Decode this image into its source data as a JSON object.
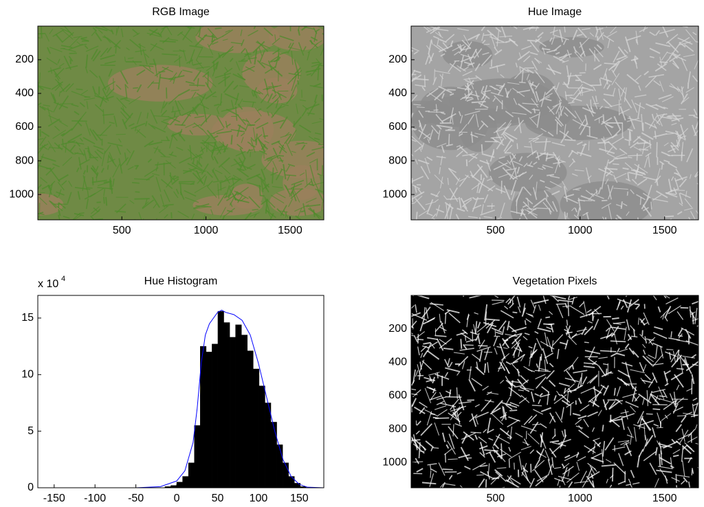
{
  "chart_data": [
    {
      "type": "image",
      "title": "RGB Image",
      "xlim": [
        0.5,
        1700.5
      ],
      "ylim": [
        0.5,
        1150.5
      ],
      "y_reversed": true,
      "xticks": [
        500,
        1000,
        1500
      ],
      "yticks": [
        200,
        400,
        600,
        800,
        1000
      ],
      "image_colors": [
        "#6f8a45",
        "#9b7f5c",
        "#4f8a2c"
      ]
    },
    {
      "type": "image",
      "title": "Hue Image",
      "xlim": [
        0.5,
        1700.5
      ],
      "ylim": [
        0.5,
        1150.5
      ],
      "y_reversed": true,
      "xticks": [
        500,
        1000,
        1500
      ],
      "yticks": [
        200,
        400,
        600,
        800,
        1000
      ],
      "image_colors": [
        "#a4a4a4",
        "#8c8c8c",
        "#d6d6d6"
      ]
    },
    {
      "type": "histogram",
      "title": "Hue Histogram",
      "y_scale_label": "x 10",
      "y_scale_exponent": "4",
      "xlim": [
        -170,
        180
      ],
      "ylim": [
        0,
        17
      ],
      "xticks": [
        -150,
        -100,
        -50,
        0,
        50,
        100,
        150
      ],
      "yticks": [
        0,
        5,
        10,
        15
      ],
      "color": "#000000",
      "bins": [
        -14.4,
        -7.2,
        0,
        7.2,
        14.4,
        21.6,
        28.8,
        36,
        43.2,
        50.4,
        57.6,
        64.8,
        72,
        79.2,
        86.4,
        93.6,
        100.8,
        108,
        115.2,
        122.4,
        129.6,
        136.8,
        144,
        151.2,
        158.4
      ],
      "values": [
        0.1,
        0.2,
        0.5,
        1.0,
        2.2,
        5.5,
        12.5,
        12.0,
        12.7,
        15.6,
        14.6,
        13.3,
        14.4,
        13.5,
        12.1,
        10.5,
        9.0,
        7.5,
        5.8,
        3.8,
        2.2,
        1.0,
        0.4,
        0.1
      ],
      "fit": {
        "color": "#0000ff",
        "x": [
          -170,
          -50,
          -20,
          0,
          10,
          20,
          25,
          30,
          35,
          40,
          50,
          55,
          60,
          70,
          80,
          90,
          100,
          110,
          120,
          130,
          140,
          150,
          160,
          180
        ],
        "values": [
          0,
          0,
          0.1,
          0.6,
          1.5,
          4,
          7,
          11,
          13.5,
          14.5,
          15.5,
          15.7,
          15.5,
          15.3,
          14.8,
          13.5,
          11,
          8,
          5,
          2.5,
          1,
          0.3,
          0.05,
          0
        ]
      }
    },
    {
      "type": "image",
      "title": "Vegetation Pixels",
      "xlim": [
        0.5,
        1700.5
      ],
      "ylim": [
        0.5,
        1150.5
      ],
      "y_reversed": true,
      "xticks": [
        500,
        1000,
        1500
      ],
      "yticks": [
        200,
        400,
        600,
        800,
        1000
      ],
      "image_colors": [
        "#000000",
        "#000000",
        "#ffffff"
      ]
    }
  ]
}
